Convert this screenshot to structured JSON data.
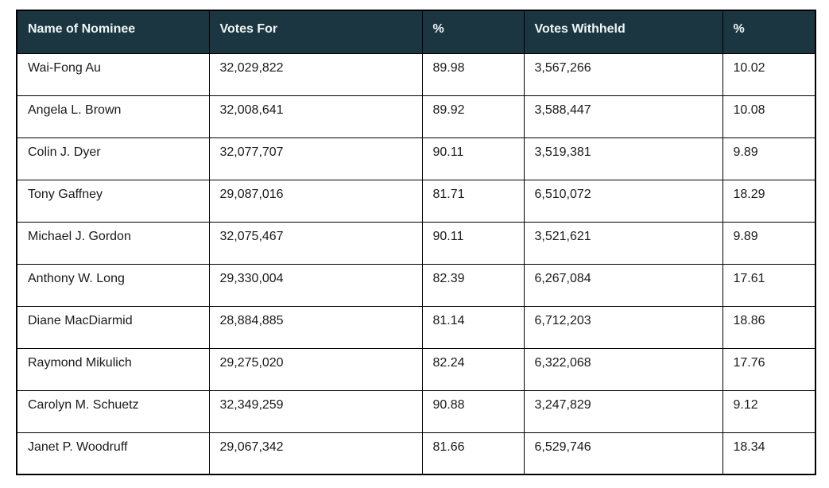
{
  "table": {
    "title": "director-election-vote-results",
    "columns": [
      "Name of Nominee",
      "Votes For",
      "%",
      "Votes Withheld",
      "%"
    ],
    "rows": [
      {
        "name": "Wai-Fong Au",
        "votes_for": "32,029,822",
        "pct_for": "89.98",
        "votes_withheld": "3,567,266",
        "pct_withheld": "10.02"
      },
      {
        "name": "Angela L. Brown",
        "votes_for": "32,008,641",
        "pct_for": "89.92",
        "votes_withheld": "3,588,447",
        "pct_withheld": "10.08"
      },
      {
        "name": "Colin J. Dyer",
        "votes_for": "32,077,707",
        "pct_for": "90.11",
        "votes_withheld": "3,519,381",
        "pct_withheld": "9.89"
      },
      {
        "name": "Tony Gaffney",
        "votes_for": "29,087,016",
        "pct_for": "81.71",
        "votes_withheld": "6,510,072",
        "pct_withheld": "18.29"
      },
      {
        "name": "Michael J. Gordon",
        "votes_for": "32,075,467",
        "pct_for": "90.11",
        "votes_withheld": "3,521,621",
        "pct_withheld": "9.89"
      },
      {
        "name": "Anthony W. Long",
        "votes_for": "29,330,004",
        "pct_for": "82.39",
        "votes_withheld": "6,267,084",
        "pct_withheld": "17.61"
      },
      {
        "name": "Diane MacDiarmid",
        "votes_for": "28,884,885",
        "pct_for": "81.14",
        "votes_withheld": "6,712,203",
        "pct_withheld": "18.86"
      },
      {
        "name": "Raymond Mikulich",
        "votes_for": "29,275,020",
        "pct_for": "82.24",
        "votes_withheld": "6,322,068",
        "pct_withheld": "17.76"
      },
      {
        "name": "Carolyn M. Schuetz",
        "votes_for": "32,349,259",
        "pct_for": "90.88",
        "votes_withheld": "3,247,829",
        "pct_withheld": "9.12"
      },
      {
        "name": "Janet P. Woodruff",
        "votes_for": "29,067,342",
        "pct_for": "81.66",
        "votes_withheld": "6,529,746",
        "pct_withheld": "18.34"
      }
    ],
    "colors": {
      "header_bg": "#1b3640",
      "header_text": "#f0f6f7",
      "border": "#000000",
      "row_bg": "#ffffff",
      "body_text": "#1a1a1a"
    }
  }
}
